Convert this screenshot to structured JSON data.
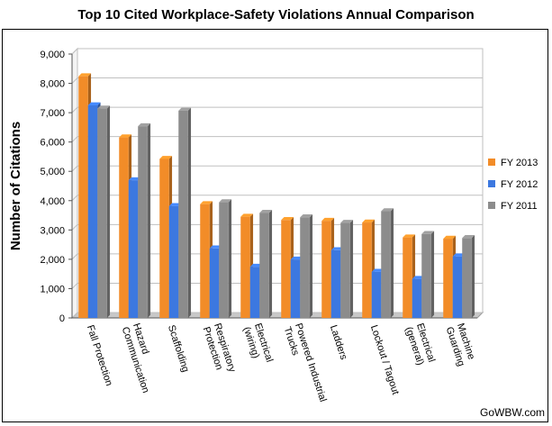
{
  "title": "Top 10 Cited Workplace-Safety Violations Annual Comparison",
  "credit": "GoWBW.com",
  "chart_data": {
    "type": "bar",
    "title": "Top 10 Cited Workplace-Safety Violations Annual Comparison",
    "xlabel": "",
    "ylabel": "Number of Citations",
    "ylim": [
      0,
      9000
    ],
    "yticks": [
      "0",
      "1,000",
      "2,000",
      "3,000",
      "4,000",
      "5,000",
      "6,000",
      "7,000",
      "8,000",
      "9,000"
    ],
    "grid": true,
    "legend_position": "right",
    "style": "3d-columns",
    "categories": [
      [
        "Fall Protection"
      ],
      [
        "Hazard",
        "Communication"
      ],
      [
        "Scaffolding"
      ],
      [
        "Respiratory",
        "Protection"
      ],
      [
        "Electrical",
        "(wiring)"
      ],
      [
        "Powered Industrial",
        "Trucks"
      ],
      [
        "Ladders"
      ],
      [
        "Lockout / Tagout"
      ],
      [
        "Electrical",
        "(general)"
      ],
      [
        "Machine",
        "Guarding"
      ]
    ],
    "series": [
      {
        "name": "FY 2013",
        "color": "#f28c28",
        "values": [
          8241,
          6156,
          5423,
          3879,
          3452,
          3340,
          3311,
          3254,
          2745,
          2701
        ]
      },
      {
        "name": "FY 2012",
        "color": "#3c78e0",
        "values": [
          7250,
          4696,
          3814,
          2371,
          1744,
          1993,
          2310,
          1572,
          1332,
          2097
        ]
      },
      {
        "name": "FY 2011",
        "color": "#8c8c8c",
        "values": [
          7139,
          6538,
          7069,
          3944,
          3584,
          3432,
          3244,
          3639,
          2863,
          2725
        ]
      }
    ]
  }
}
